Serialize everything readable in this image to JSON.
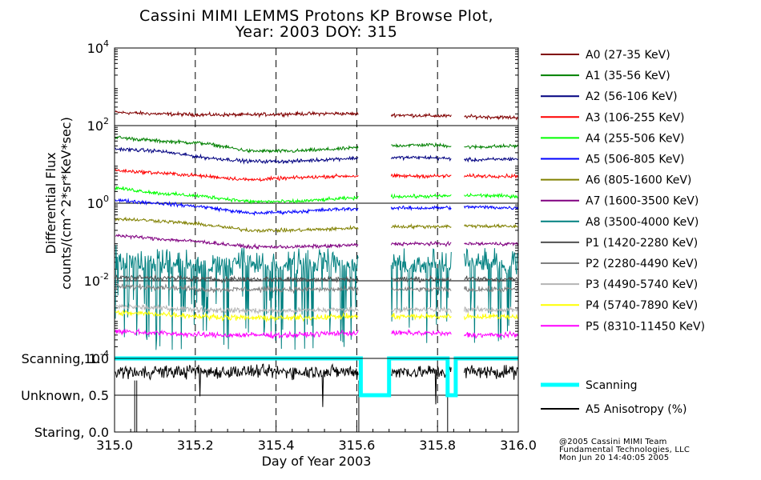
{
  "chart_data": [
    {
      "type": "line",
      "title": "Cassini MIMI LEMMS Protons KP Browse Plot,",
      "subtitle": "Year: 2003 DOY: 315",
      "ylabel_line1": "Differential Flux",
      "ylabel_line2": "counts/(cm^2*sr*KeV*sec)",
      "yscale": "log",
      "ylim": [
        0.0001,
        10000
      ],
      "ytick_bases": [
        "10",
        "10",
        "10",
        "10",
        "10"
      ],
      "ytick_exps": [
        "-4",
        "-2",
        "0",
        "2",
        "4"
      ],
      "xlim": [
        315.0,
        316.0
      ],
      "vertical_markers": [
        315.2,
        315.4,
        315.6,
        315.8
      ],
      "data_gaps": [
        [
          315.605,
          315.685
        ],
        [
          315.835,
          315.865
        ]
      ],
      "series": [
        {
          "name": "A0 (27-35 KeV)",
          "color": "#800000",
          "level": [
            220,
            200,
            190,
            190,
            200,
            205,
            190,
            180,
            170,
            160
          ]
        },
        {
          "name": "A1 (35-56 KeV)",
          "color": "#008000",
          "level": [
            50,
            40,
            35,
            22,
            22,
            25,
            30,
            32,
            28,
            30
          ]
        },
        {
          "name": "A2 (56-106 KeV)",
          "color": "#000080",
          "level": [
            25,
            22,
            15,
            12,
            12,
            14,
            15,
            15,
            13,
            14
          ]
        },
        {
          "name": "A3 (106-255 KeV)",
          "color": "#ff0000",
          "level": [
            7,
            6,
            5,
            4,
            4.5,
            5,
            5,
            5,
            5,
            5
          ]
        },
        {
          "name": "A4 (255-506 KeV)",
          "color": "#00ff00",
          "level": [
            2.5,
            1.8,
            1.5,
            1.1,
            1.1,
            1.3,
            1.5,
            1.5,
            1.6,
            1.5
          ]
        },
        {
          "name": "A5 (506-805 KeV)",
          "color": "#0000ff",
          "level": [
            1.2,
            1.0,
            0.8,
            0.55,
            0.6,
            0.7,
            0.75,
            0.75,
            0.8,
            0.75
          ]
        },
        {
          "name": "A6 (805-1600 KeV)",
          "color": "#808000",
          "level": [
            0.4,
            0.35,
            0.28,
            0.2,
            0.2,
            0.22,
            0.25,
            0.25,
            0.26,
            0.25
          ]
        },
        {
          "name": "A7 (1600-3500 KeV)",
          "color": "#800080",
          "level": [
            0.15,
            0.12,
            0.1,
            0.075,
            0.075,
            0.08,
            0.09,
            0.09,
            0.09,
            0.09
          ]
        },
        {
          "name": "A8 (3500-4000 KeV)",
          "color": "#008080",
          "level": [
            0.03,
            0.025,
            0.025,
            0.025,
            0.025,
            0.025,
            0.025,
            0.025,
            0.025,
            0.025
          ]
        },
        {
          "name": "P1 (1420-2280 KeV)",
          "color": "#505050",
          "level": [
            0.012,
            0.012,
            0.011,
            0.011,
            0.011,
            0.011,
            0.011,
            0.011,
            0.011,
            0.011
          ]
        },
        {
          "name": "P2 (2280-4490 KeV)",
          "color": "#808080",
          "level": [
            0.007,
            0.007,
            0.006,
            0.006,
            0.006,
            0.006,
            0.006,
            0.006,
            0.006,
            0.006
          ]
        },
        {
          "name": "P3 (4490-5740 KeV)",
          "color": "#b4b4b4",
          "level": [
            0.0022,
            0.002,
            0.0018,
            0.0017,
            0.0017,
            0.0018,
            0.0018,
            0.0018,
            0.0018,
            0.0018
          ]
        },
        {
          "name": "P4 (5740-7890 KeV)",
          "color": "#ffff00",
          "level": [
            0.0015,
            0.0014,
            0.0012,
            0.0011,
            0.0011,
            0.0012,
            0.0012,
            0.0012,
            0.0012,
            0.0012
          ]
        },
        {
          "name": "P5 (8310-11450 KeV)",
          "color": "#ff00ff",
          "level": [
            0.0005,
            0.00045,
            0.0004,
            0.0004,
            0.0004,
            0.00045,
            0.00045,
            0.00045,
            0.0004,
            0.0004
          ]
        }
      ]
    },
    {
      "type": "line",
      "xlabel": "Day of Year 2003",
      "ylim": [
        0.0,
        1.0
      ],
      "xlim": [
        315.0,
        316.0
      ],
      "xticks": [
        "315.0",
        "315.2",
        "315.4",
        "315.6",
        "315.8",
        "316.0"
      ],
      "ytick_labels": [
        "Staring, 0.0",
        "Unknown, 0.5",
        "Scanning, 1.0"
      ],
      "series": [
        {
          "name": "Scanning",
          "color": "#00ffff",
          "x": [
            315.0,
            315.61,
            315.61,
            315.68,
            315.68,
            315.825,
            315.825,
            315.845,
            315.845,
            316.0
          ],
          "y": [
            1.0,
            1.0,
            0.5,
            0.5,
            1.0,
            1.0,
            0.5,
            0.5,
            1.0,
            1.0
          ]
        },
        {
          "name": "A5 Anisotropy (%)",
          "color": "#000000",
          "level": 0.82
        }
      ]
    }
  ],
  "footer": {
    "line1": "@2005 Cassini MIMI Team",
    "line2": "Fundamental Technologies, LLC",
    "line3": "Mon Jun 20 14:40:05 2005"
  }
}
